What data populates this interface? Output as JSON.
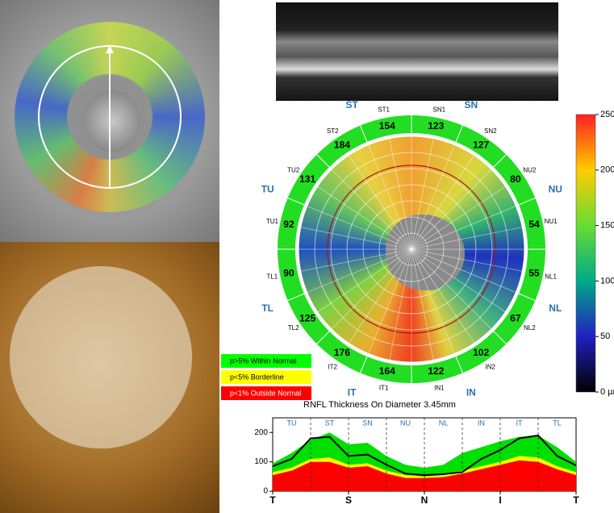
{
  "sector_map": {
    "quadrants": [
      "ST",
      "SN",
      "NU",
      "NL",
      "IN",
      "IT",
      "TL",
      "TU"
    ],
    "sectors": [
      {
        "label": "ST1",
        "value": 154
      },
      {
        "label": "SN1",
        "value": 123
      },
      {
        "label": "SN2",
        "value": 127
      },
      {
        "label": "NU2",
        "value": 80
      },
      {
        "label": "NU1",
        "value": 54
      },
      {
        "label": "NL1",
        "value": 55
      },
      {
        "label": "NL2",
        "value": 67
      },
      {
        "label": "IN2",
        "value": 102
      },
      {
        "label": "IN1",
        "value": 122
      },
      {
        "label": "IT1",
        "value": 164
      },
      {
        "label": "IT2",
        "value": 176
      },
      {
        "label": "TL2",
        "value": 125
      },
      {
        "label": "TL1",
        "value": 90
      },
      {
        "label": "TU1",
        "value": 92
      },
      {
        "label": "TU2",
        "value": 131
      },
      {
        "label": "ST2",
        "value": 184
      }
    ]
  },
  "color_scale": {
    "ylim": [
      0,
      250
    ],
    "yticks": [
      {
        "value": 0,
        "label": "0 µm"
      },
      50,
      100,
      150,
      200,
      250
    ]
  },
  "legend": [
    "p>5% Within Normal",
    "p<5% Borderline",
    "p<1% Outside Normal"
  ],
  "profile": {
    "type": "area",
    "title": "RNFL Thickness On Diameter 3.45mm",
    "sectors": [
      "TU",
      "ST",
      "SN",
      "NU",
      "NL",
      "IN",
      "IT",
      "TL"
    ],
    "x": [
      0,
      1,
      2,
      3,
      4,
      5,
      6,
      7,
      8,
      9,
      10,
      11,
      12,
      13,
      14,
      15,
      16
    ],
    "xlim": [
      0,
      16
    ],
    "xticks": [
      {
        "value": 0,
        "label": "T"
      },
      {
        "value": 4,
        "label": "S"
      },
      {
        "value": 8,
        "label": "N"
      },
      {
        "value": 12,
        "label": "I"
      },
      {
        "value": 16,
        "label": "T"
      }
    ],
    "ylim": [
      0,
      250
    ],
    "yticks": [
      0,
      100,
      200
    ],
    "series": [
      {
        "color": "#00e000",
        "values": [
          95,
          130,
          175,
          200,
          160,
          165,
          120,
          90,
          80,
          90,
          130,
          150,
          170,
          185,
          190,
          150,
          100
        ]
      },
      {
        "color": "#ffff00",
        "values": [
          65,
          80,
          110,
          115,
          90,
          95,
          70,
          55,
          50,
          55,
          70,
          85,
          100,
          120,
          115,
          85,
          65
        ]
      },
      {
        "color": "#ff0000",
        "values": [
          55,
          70,
          100,
          100,
          80,
          85,
          60,
          45,
          45,
          48,
          60,
          75,
          90,
          105,
          100,
          75,
          55
        ]
      },
      {
        "color": "#000000",
        "line": true,
        "values": [
          85,
          110,
          180,
          185,
          120,
          125,
          90,
          60,
          55,
          58,
          65,
          110,
          140,
          180,
          190,
          120,
          88
        ]
      }
    ]
  }
}
